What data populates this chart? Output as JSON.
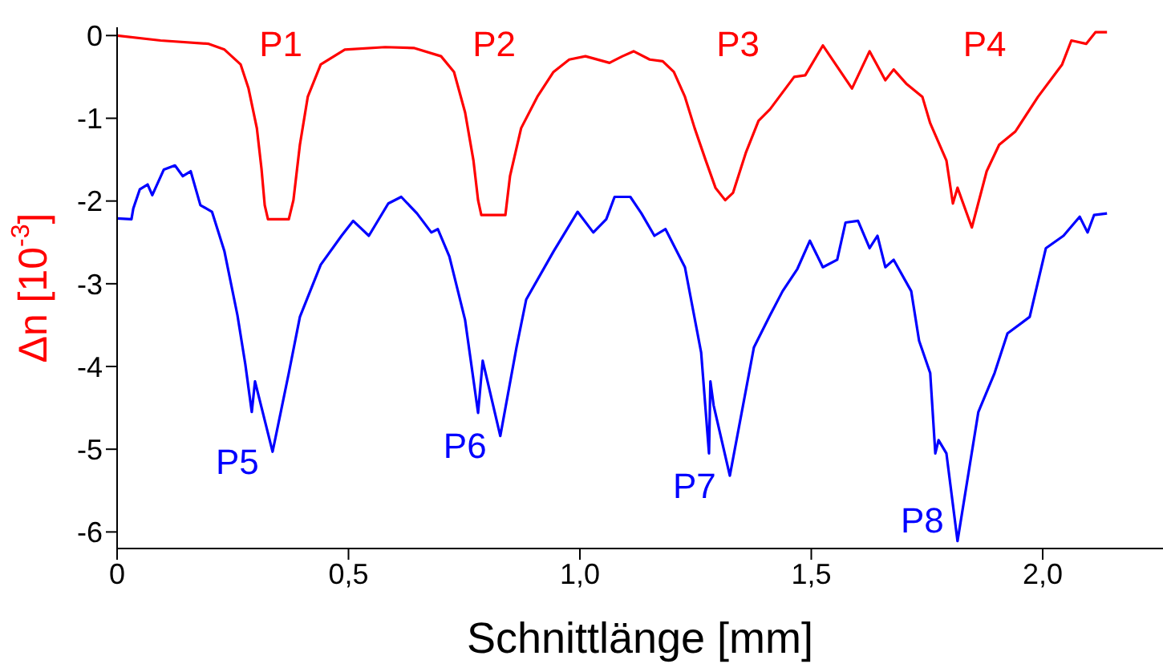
{
  "chart_data": {
    "type": "line",
    "xlabel": "Schnittlänge [mm]",
    "ylabel": "Δn [10$^{-3}$]",
    "xlim": [
      0,
      2.26
    ],
    "xticks": [
      0,
      {
        "value": 0.5,
        "label": "0,5"
      },
      {
        "value": 1.0,
        "label": "1,0"
      },
      {
        "value": 1.5,
        "label": "1,5"
      },
      {
        "value": 2.0,
        "label": "2,0"
      }
    ],
    "ylim": [
      -6.2,
      0.1
    ],
    "yticks": [
      0,
      -1,
      -2,
      -3,
      -4,
      -5,
      -6
    ],
    "grid": false,
    "marker": "none",
    "line_style": "solid",
    "series": [
      {
        "color": "#ff0000",
        "x": [
          0,
          0.094,
          0.198,
          0.232,
          0.267,
          0.284,
          0.302,
          0.312,
          0.319,
          0.326,
          0.371,
          0.381,
          0.395,
          0.412,
          0.44,
          0.492,
          0.579,
          0.641,
          0.7,
          0.728,
          0.752,
          0.77,
          0.78,
          0.787,
          0.839,
          0.849,
          0.873,
          0.908,
          0.943,
          0.977,
          1.012,
          1.064,
          1.092,
          1.116,
          1.151,
          1.179,
          1.203,
          1.227,
          1.248,
          1.272,
          1.293,
          1.314,
          1.331,
          1.359,
          1.386,
          1.411,
          1.463,
          1.487,
          1.525,
          1.588,
          1.626,
          1.66,
          1.678,
          1.705,
          1.74,
          1.757,
          1.792,
          1.806,
          1.816,
          1.847,
          1.879,
          1.906,
          1.941,
          1.99,
          2.042,
          2.062,
          2.094,
          2.114,
          2.139
        ],
        "values": [
          0,
          -0.06,
          -0.1,
          -0.17,
          -0.35,
          -0.64,
          -1.12,
          -1.61,
          -2.05,
          -2.22,
          -2.22,
          -1.99,
          -1.32,
          -0.74,
          -0.35,
          -0.17,
          -0.14,
          -0.15,
          -0.25,
          -0.44,
          -0.93,
          -1.51,
          -1.99,
          -2.17,
          -2.17,
          -1.7,
          -1.12,
          -0.74,
          -0.44,
          -0.29,
          -0.25,
          -0.33,
          -0.25,
          -0.19,
          -0.29,
          -0.31,
          -0.44,
          -0.74,
          -1.12,
          -1.51,
          -1.84,
          -1.99,
          -1.9,
          -1.41,
          -1.03,
          -0.89,
          -0.5,
          -0.48,
          -0.12,
          -0.64,
          -0.19,
          -0.54,
          -0.41,
          -0.58,
          -0.74,
          -1.06,
          -1.51,
          -2.03,
          -1.84,
          -2.32,
          -1.64,
          -1.32,
          -1.16,
          -0.74,
          -0.35,
          -0.06,
          -0.1,
          0.04,
          0.04
        ]
      },
      {
        "color": "#0000ff",
        "x": [
          0,
          0.031,
          0.035,
          0.049,
          0.066,
          0.076,
          0.101,
          0.125,
          0.142,
          0.159,
          0.18,
          0.205,
          0.232,
          0.26,
          0.277,
          0.291,
          0.298,
          0.336,
          0.371,
          0.395,
          0.44,
          0.485,
          0.51,
          0.544,
          0.586,
          0.614,
          0.648,
          0.679,
          0.693,
          0.718,
          0.752,
          0.78,
          0.79,
          0.828,
          0.863,
          0.884,
          0.943,
          0.995,
          1.029,
          1.057,
          1.075,
          1.109,
          1.133,
          1.161,
          1.185,
          1.227,
          1.262,
          1.279,
          1.282,
          1.289,
          1.324,
          1.376,
          1.411,
          1.438,
          1.47,
          1.497,
          1.525,
          1.556,
          1.574,
          1.601,
          1.626,
          1.643,
          1.66,
          1.678,
          1.716,
          1.733,
          1.757,
          1.768,
          1.775,
          1.792,
          1.816,
          1.861,
          1.896,
          1.924,
          1.972,
          2.007,
          2.045,
          2.08,
          2.097,
          2.111,
          2.139
        ],
        "values": [
          -2.21,
          -2.22,
          -2.09,
          -1.86,
          -1.8,
          -1.93,
          -1.62,
          -1.57,
          -1.7,
          -1.64,
          -2.05,
          -2.13,
          -2.61,
          -3.38,
          -3.97,
          -4.55,
          -4.18,
          -5.03,
          -4.08,
          -3.4,
          -2.77,
          -2.42,
          -2.24,
          -2.42,
          -2.03,
          -1.95,
          -2.15,
          -2.38,
          -2.34,
          -2.67,
          -3.44,
          -4.56,
          -3.93,
          -4.84,
          -3.77,
          -3.19,
          -2.61,
          -2.13,
          -2.38,
          -2.22,
          -1.95,
          -1.95,
          -2.15,
          -2.42,
          -2.34,
          -2.8,
          -3.83,
          -5.05,
          -4.18,
          -4.47,
          -5.32,
          -3.77,
          -3.38,
          -3.09,
          -2.82,
          -2.48,
          -2.8,
          -2.71,
          -2.26,
          -2.24,
          -2.57,
          -2.42,
          -2.8,
          -2.71,
          -3.09,
          -3.69,
          -4.08,
          -5.05,
          -4.89,
          -5.05,
          -6.11,
          -4.55,
          -4.08,
          -3.6,
          -3.4,
          -2.57,
          -2.42,
          -2.19,
          -2.38,
          -2.17,
          -2.15
        ]
      }
    ],
    "annotations": [
      "P1",
      "P2",
      "P3",
      "P4",
      {
        "text": "P5",
        "x": 0.336,
        "y": -5.03
      },
      {
        "text": "P6",
        "x": 0.828,
        "y": -4.84
      },
      {
        "text": "P7",
        "x": 1.324,
        "y": -5.32
      },
      {
        "text": "P8",
        "x": 1.816,
        "y": -6.11
      }
    ]
  }
}
